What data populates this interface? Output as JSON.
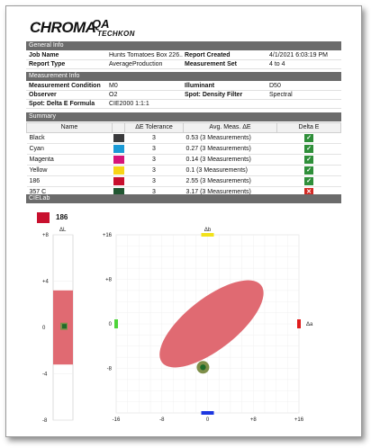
{
  "logo": {
    "chroma": "CHROMA",
    "qa": "QA",
    "techkon": "TECHKON"
  },
  "general_info": {
    "header": "General Info",
    "rows": [
      {
        "l1": "Job Name",
        "v1": "Hunts Tomatoes Box 226...",
        "l2": "Report Created",
        "v2": "4/1/2021 6:03:19 PM"
      },
      {
        "l1": "Report Type",
        "v1": "AverageProduction",
        "l2": "Measurement Set",
        "v2": "4 to 4"
      }
    ]
  },
  "measurement_info": {
    "header": "Measurement Info",
    "rows": [
      {
        "l1": "Measurement Condition",
        "v1": "M0",
        "l2": "Illuminant",
        "v2": "D50"
      },
      {
        "l1": "Observer",
        "v1": "O2",
        "l2": "Spot: Density Filter",
        "v2": "Spectral"
      },
      {
        "l1": "Spot: Delta E Formula",
        "v1": "CIE2000 1:1:1",
        "l2": "",
        "v2": ""
      }
    ]
  },
  "summary": {
    "header": "Summary",
    "columns": {
      "name": "Name",
      "tolerance": "ΔE Tolerance",
      "avg": "Avg. Meas. ΔE",
      "delta": "Delta E"
    },
    "rows": [
      {
        "name": "Black",
        "color": "#3a3a3c",
        "tolerance": "3",
        "avg": "0.53  (3 Measurements)",
        "pass": true
      },
      {
        "name": "Cyan",
        "color": "#1a9ad6",
        "tolerance": "3",
        "avg": "0.27  (3 Measurements)",
        "pass": true
      },
      {
        "name": "Magenta",
        "color": "#d6147a",
        "tolerance": "3",
        "avg": "0.14  (3 Measurements)",
        "pass": true
      },
      {
        "name": "Yellow",
        "color": "#f7d417",
        "tolerance": "3",
        "avg": "0.1  (3 Measurements)",
        "pass": true
      },
      {
        "name": "186",
        "color": "#c8102e",
        "tolerance": "3",
        "avg": "2.55  (3 Measurements)",
        "pass": true
      },
      {
        "name": "357 C",
        "color": "#215732",
        "tolerance": "3",
        "avg": "3.17  (3 Measurements)",
        "pass": false
      }
    ]
  },
  "cielab": {
    "header": "CIELab",
    "selected": "186",
    "selected_color": "#c8102e",
    "dL": {
      "label": "ΔL",
      "ylim": [
        -8,
        8
      ],
      "ticks": [
        "+8",
        "+4",
        "0",
        "-4",
        "-8"
      ],
      "tolerance_range": [
        -3.2,
        3.2
      ],
      "point": 0.1
    },
    "dab": {
      "xlabel": "Δa",
      "ylabel": "Δb",
      "xlim": [
        -16,
        16
      ],
      "ylim": [
        -16,
        16
      ],
      "xticks": [
        "-16",
        "-8",
        "0",
        "+8",
        "+16"
      ],
      "yticks": [
        "+16",
        "+8",
        "0",
        "-8"
      ],
      "point": [
        -0.8,
        -7.8
      ],
      "ellipse": {
        "cx": 0.7,
        "cy": 0.0,
        "rx": 11.0,
        "ry": 4.6,
        "angle_deg": 38
      }
    },
    "colors": {
      "tolerance_fill": "#e06a72",
      "point": "#1f6b2a",
      "point_halo": "#7f8f4a",
      "edge_green": "#4fd43a",
      "edge_red": "#e01c1c",
      "edge_yellow": "#f2e21a",
      "edge_blue": "#1d37e0"
    }
  }
}
